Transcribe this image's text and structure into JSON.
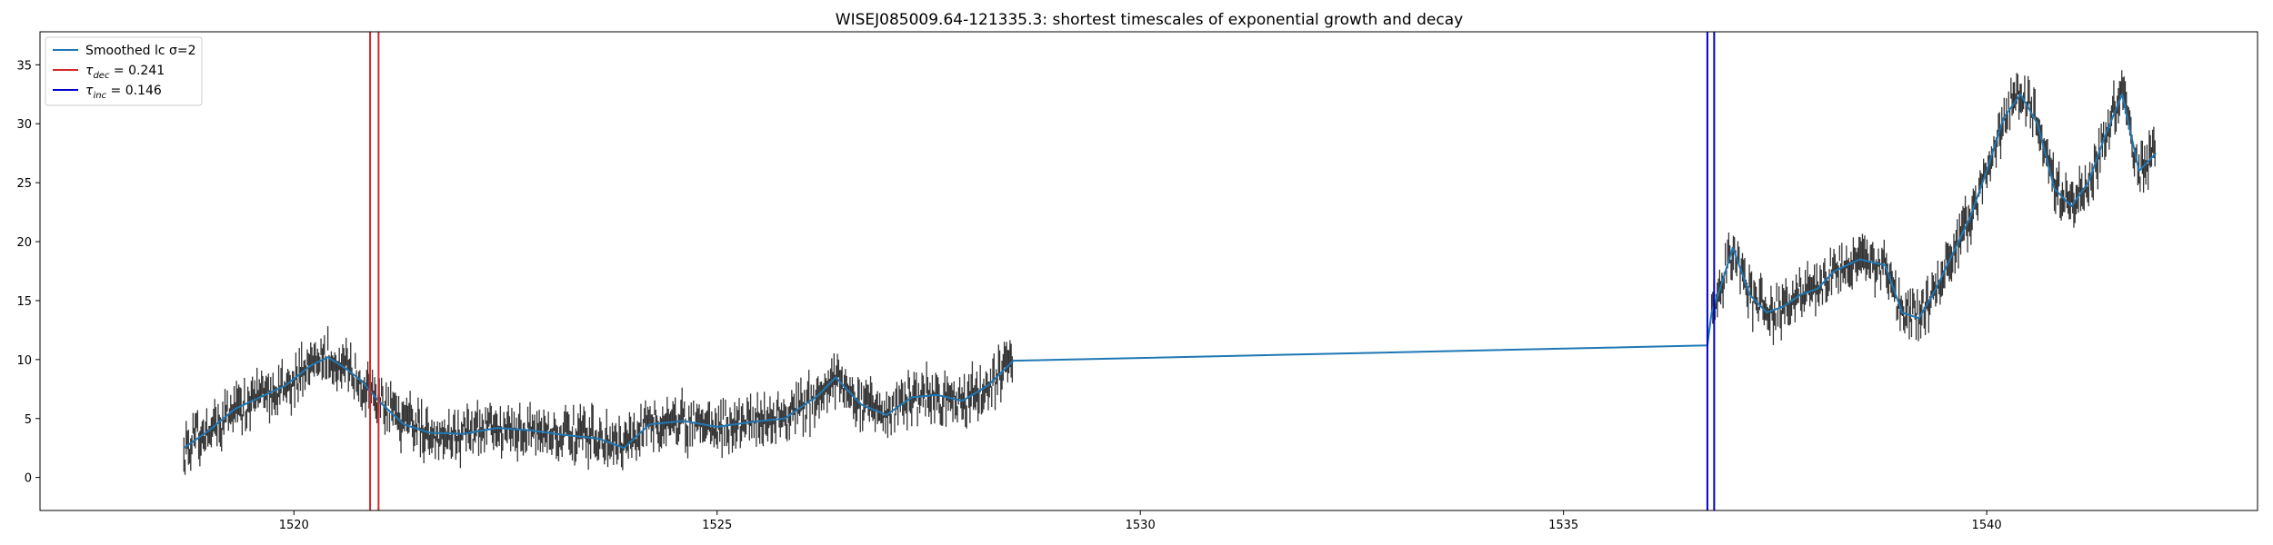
{
  "chart_data": {
    "type": "line",
    "title": "WISEJ085009.64-121335.3: shortest timescales of exponential growth and decay",
    "xlabel": "",
    "ylabel": "",
    "xlim": [
      1517.0,
      1543.2
    ],
    "ylim": [
      -2.8,
      37.8
    ],
    "xticks": [
      1520,
      1525,
      1530,
      1535,
      1540
    ],
    "yticks": [
      0,
      5,
      10,
      15,
      20,
      25,
      30,
      35
    ],
    "grid": false,
    "legend_position": "top-left",
    "legend": {
      "smoothed_label": "Smoothed lc σ=2",
      "dec_tau": "τ",
      "dec_sub": "dec",
      "dec_value": " = 0.241",
      "inc_tau": "τ",
      "inc_sub": "inc",
      "inc_value": " = 0.146"
    },
    "series": [
      {
        "kind": "smoothed_line",
        "color": "#1f77b4",
        "x": [
          1518.7,
          1519.0,
          1519.3,
          1519.6,
          1519.9,
          1520.2,
          1520.4,
          1520.6,
          1520.8,
          1521.0,
          1521.3,
          1521.6,
          1522.0,
          1522.4,
          1522.8,
          1523.2,
          1523.6,
          1523.9,
          1524.2,
          1524.6,
          1525.0,
          1525.4,
          1525.8,
          1526.2,
          1526.4,
          1526.7,
          1527.0,
          1527.3,
          1527.6,
          1527.9,
          1528.2,
          1528.5,
          1536.7,
          1536.75,
          1536.85,
          1537.0,
          1537.2,
          1537.4,
          1537.6,
          1537.8,
          1538.0,
          1538.2,
          1538.5,
          1538.8,
          1539.0,
          1539.2,
          1539.4,
          1539.6,
          1539.8,
          1540.0,
          1540.2,
          1540.4,
          1540.6,
          1540.8,
          1541.0,
          1541.2,
          1541.4,
          1541.6,
          1541.8,
          1542.0
        ],
        "y": [
          2.5,
          4.0,
          5.8,
          6.8,
          7.8,
          9.5,
          10.2,
          9.3,
          8.2,
          6.5,
          4.5,
          3.8,
          3.7,
          4.2,
          4.0,
          3.6,
          3.3,
          2.5,
          4.5,
          4.8,
          4.3,
          4.7,
          5.0,
          7.0,
          8.5,
          6.2,
          5.3,
          6.8,
          7.0,
          6.5,
          7.8,
          9.9,
          11.2,
          14.0,
          16.0,
          19.5,
          15.5,
          14.0,
          14.5,
          15.5,
          16.0,
          17.5,
          18.5,
          18.0,
          14.0,
          13.5,
          16.0,
          19.0,
          22.0,
          26.0,
          30.5,
          32.5,
          30.0,
          24.5,
          23.0,
          25.0,
          29.0,
          32.5,
          26.0,
          27.5
        ]
      }
    ],
    "vlines": [
      {
        "group": "dec",
        "color": "#d62728",
        "x": [
          1520.9,
          1521.0
        ]
      },
      {
        "group": "inc",
        "color": "#0000cc",
        "x": [
          1536.7,
          1536.78
        ]
      }
    ],
    "errorbar_color": "#333333"
  }
}
